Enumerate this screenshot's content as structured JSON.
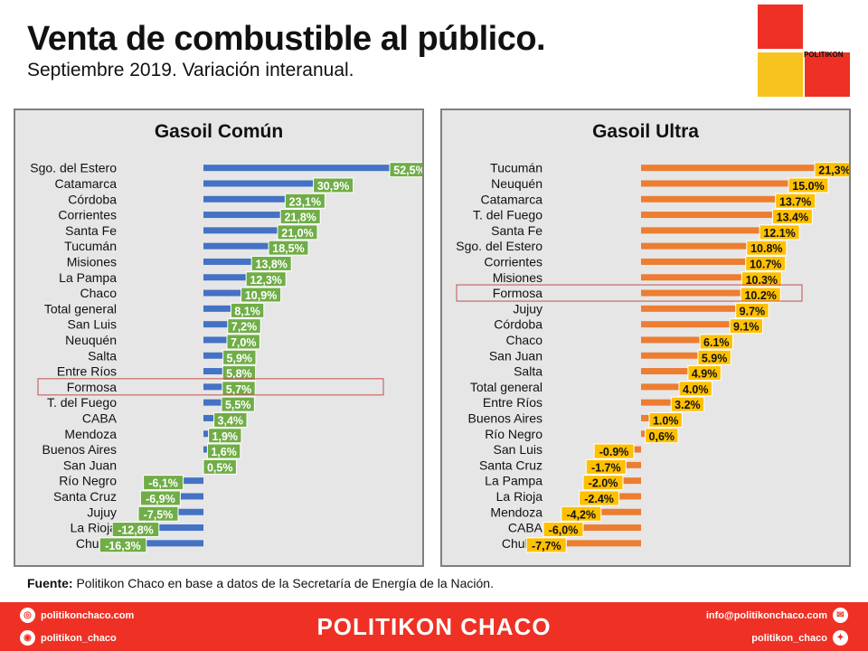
{
  "header": {
    "title": "Venta de combustible al público.",
    "subtitle": "Septiembre 2019. Variación interanual."
  },
  "logo": {
    "text": "POLITIKON",
    "colors": [
      "#ee3124",
      "#ee3124",
      "#f9c31f",
      "#ee3124"
    ]
  },
  "colors": {
    "left_bar": "#4472c4",
    "left_label_bg": "#70ad47",
    "right_bar": "#ed7d31",
    "right_label_bg": "#ffc000",
    "highlight": "#c0504d",
    "brand": "#ee3124"
  },
  "chart_data": [
    {
      "type": "bar",
      "orientation": "horizontal",
      "title": "Gasoil Común",
      "categories": [
        "Sgo. del Estero",
        "Catamarca",
        "Córdoba",
        "Corrientes",
        "Santa Fe",
        "Tucumán",
        "Misiones",
        "La Pampa",
        "Chaco",
        "Total general",
        "San Luis",
        "Neuquén",
        "Salta",
        "Entre Ríos",
        "Formosa",
        "T. del Fuego",
        "CABA",
        "Mendoza",
        "Buenos Aires",
        "San Juan",
        "Río Negro",
        "Santa Cruz",
        "Jujuy",
        "La Rioja",
        "Chubut"
      ],
      "values": [
        52.5,
        30.9,
        23.1,
        21.8,
        21.0,
        18.5,
        13.8,
        12.3,
        10.9,
        8.1,
        7.2,
        7.0,
        5.9,
        5.8,
        5.7,
        5.5,
        3.4,
        1.9,
        1.6,
        0.5,
        -6.1,
        -6.9,
        -7.5,
        -12.8,
        -16.3
      ],
      "data_labels": [
        "52,5%",
        "30,9%",
        "23,1%",
        "21,8%",
        "21,0%",
        "18,5%",
        "13,8%",
        "12,3%",
        "10,9%",
        "8,1%",
        "7,2%",
        "7,0%",
        "5,9%",
        "5,8%",
        "5,7%",
        "5,5%",
        "3,4%",
        "1,9%",
        "1,6%",
        "0,5%",
        "-6,1%",
        "-6,9%",
        "-7,5%",
        "-12,8%",
        "-16,3%"
      ],
      "highlight": "Formosa",
      "unit": "%"
    },
    {
      "type": "bar",
      "orientation": "horizontal",
      "title": "Gasoil Ultra",
      "categories": [
        "Tucumán",
        "Neuquén",
        "Catamarca",
        "T. del Fuego",
        "Santa Fe",
        "Sgo. del Estero",
        "Corrientes",
        "Misiones",
        "Formosa",
        "Jujuy",
        "Córdoba",
        "Chaco",
        "San Juan",
        "Salta",
        "Total general",
        "Entre Ríos",
        "Buenos Aires",
        "Río Negro",
        "San Luis",
        "Santa Cruz",
        "La Pampa",
        "La Rioja",
        "Mendoza",
        "CABA",
        "Chubut"
      ],
      "values": [
        21.3,
        15.0,
        13.7,
        13.4,
        12.1,
        10.8,
        10.7,
        10.3,
        10.2,
        9.7,
        9.1,
        6.1,
        5.9,
        4.9,
        4.0,
        3.2,
        1.0,
        0.6,
        -0.9,
        -1.7,
        -2.0,
        -2.4,
        -4.2,
        -6.0,
        -7.7
      ],
      "data_labels": [
        "21,3%",
        "15.0%",
        "13.7%",
        "13.4%",
        "12.1%",
        "10.8%",
        "10.7%",
        "10.3%",
        "10.2%",
        "9.7%",
        "9.1%",
        "6.1%",
        "5.9%",
        "4.9%",
        "4.0%",
        "3.2%",
        "1.0%",
        "0,6%",
        "-0.9%",
        "-1.7%",
        "-2.0%",
        "-2.4%",
        "-4,2%",
        "-6,0%",
        "-7,7%"
      ],
      "highlight": "Formosa",
      "unit": "%"
    }
  ],
  "source": {
    "label": "Fuente:",
    "text": "Politikon Chaco en base a datos de la Secretaría  de Energía de la Nación."
  },
  "footer": {
    "brand": "POLITIKON CHACO",
    "web": "politikonchaco.com",
    "instagram": "politikon_chaco",
    "email": "info@politikonchaco.com",
    "twitter": "politikon_chaco",
    "icons": [
      "globe-icon",
      "instagram-icon",
      "mail-icon",
      "twitter-icon"
    ]
  }
}
